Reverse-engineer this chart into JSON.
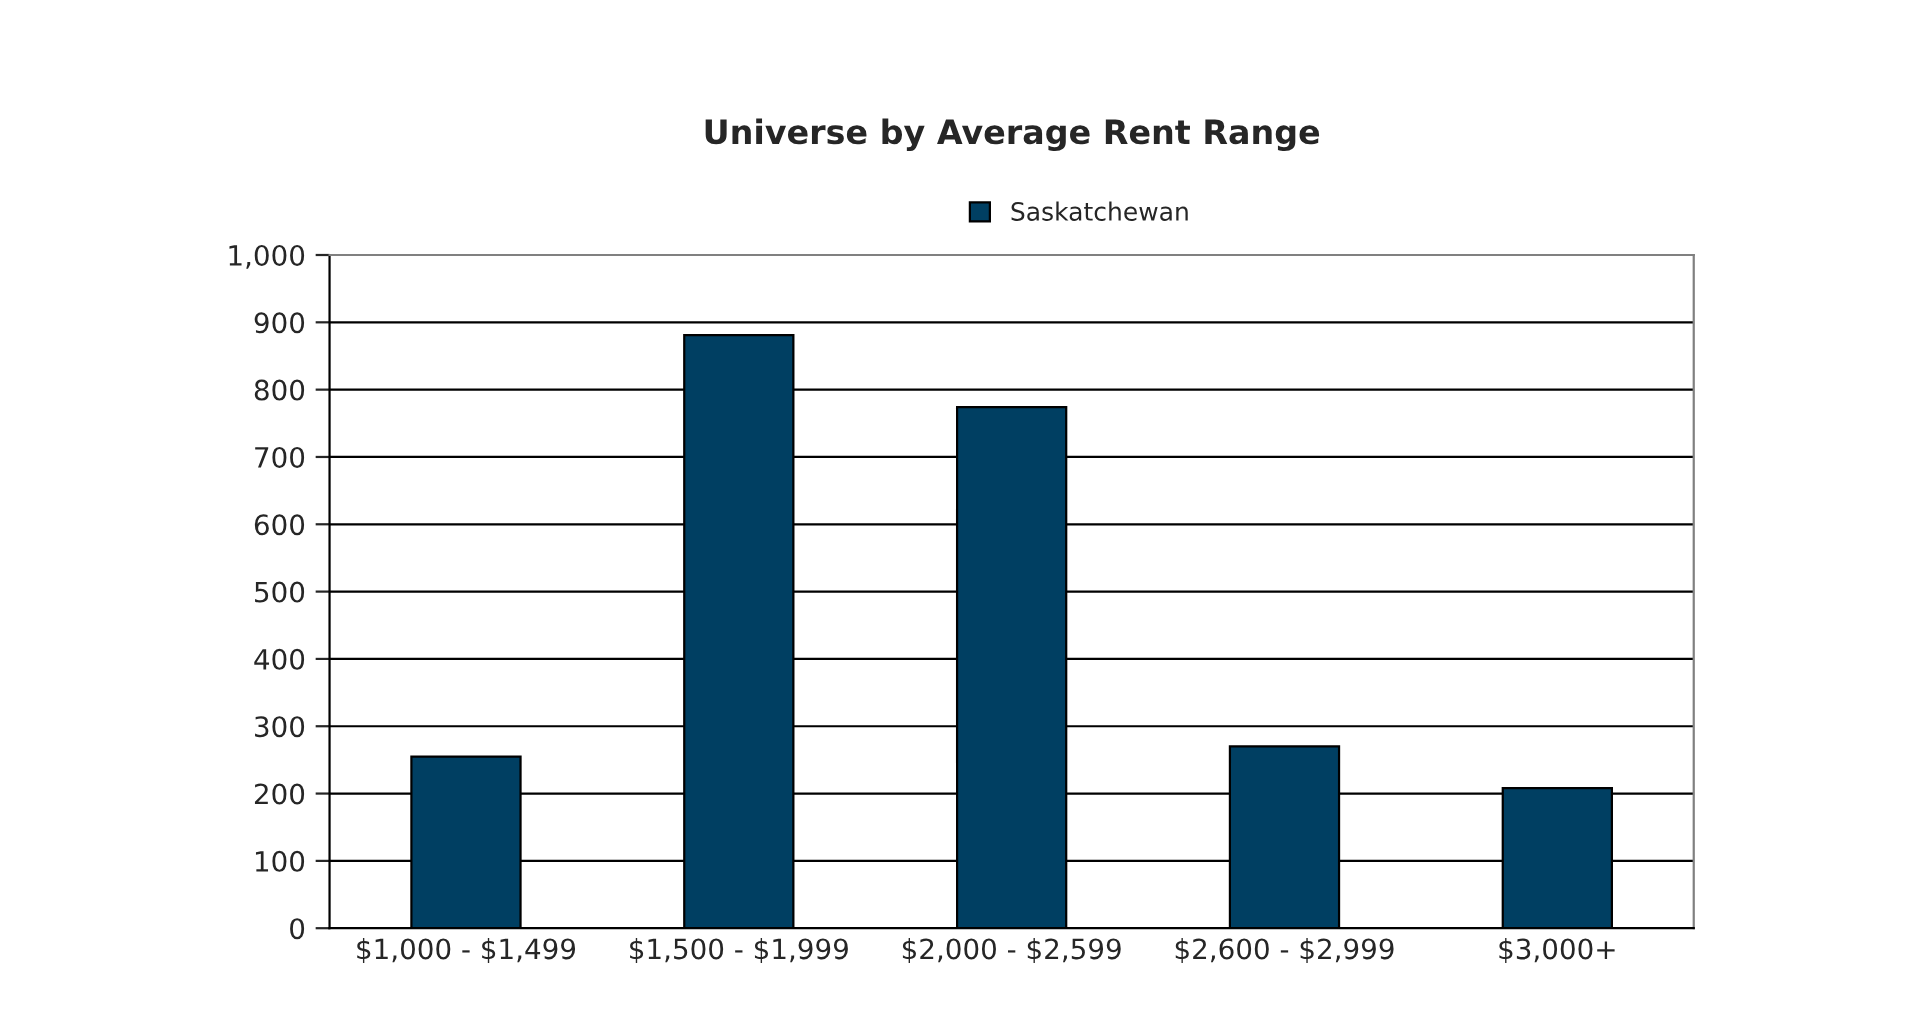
{
  "chart_data": {
    "type": "bar",
    "title": "Universe by Average Rent Range",
    "categories": [
      "$1,000 - $1,499",
      "$1,500 - $1,999",
      "$2,000 - $2,599",
      "$2,600 - $2,999",
      "$3,000+"
    ],
    "series": [
      {
        "name": "Saskatchewan",
        "color": "#003f62",
        "values": [
          255,
          881,
          774,
          270,
          208
        ]
      }
    ],
    "ylim": [
      0,
      1000
    ],
    "yticks": [
      0,
      100,
      200,
      300,
      400,
      500,
      600,
      700,
      800,
      900,
      {
        "value": 1000,
        "label": "1,000"
      }
    ],
    "grid": "y",
    "legend": "top"
  }
}
